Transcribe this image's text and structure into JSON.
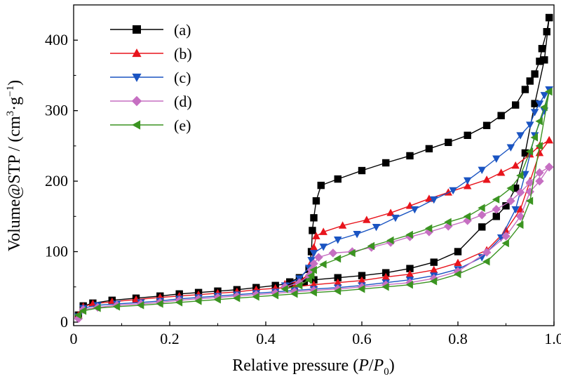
{
  "chart_data": {
    "type": "line",
    "xlabel": {
      "prefix": "Relative pressure (",
      "P": "P",
      "slash": "/",
      "P0": "P",
      "sub0": "0",
      "suffix": ")"
    },
    "ylabel": {
      "main": "Volume@STP / (cm",
      "sup3": "3",
      "mid": "·g",
      "supm1": "−1",
      "end": ")"
    },
    "xlim": [
      0.0,
      1.0
    ],
    "ylim": [
      -5,
      450
    ],
    "xticks": [
      0,
      0.2,
      0.4,
      0.6,
      0.8,
      1.0
    ],
    "xtick_labels": [
      "0",
      "0.2",
      "0.4",
      "0.6",
      "0.8",
      "1.0"
    ],
    "yticks": [
      0,
      100,
      200,
      300,
      400
    ],
    "ytick_labels": [
      "0",
      "100",
      "200",
      "300",
      "400"
    ],
    "grid": false,
    "legend_position": "top-left",
    "series": [
      {
        "name": "(a)",
        "color": "#000000",
        "marker": "square",
        "adsorption": [
          [
            0.01,
            10
          ],
          [
            0.02,
            23
          ],
          [
            0.04,
            27
          ],
          [
            0.08,
            31
          ],
          [
            0.13,
            34
          ],
          [
            0.18,
            37
          ],
          [
            0.22,
            40
          ],
          [
            0.26,
            42
          ],
          [
            0.3,
            44
          ],
          [
            0.34,
            46
          ],
          [
            0.38,
            49
          ],
          [
            0.42,
            52
          ],
          [
            0.45,
            55
          ],
          [
            0.48,
            57
          ],
          [
            0.5,
            60
          ],
          [
            0.55,
            63
          ],
          [
            0.6,
            66
          ],
          [
            0.65,
            70
          ],
          [
            0.7,
            76
          ],
          [
            0.75,
            85
          ],
          [
            0.8,
            100
          ],
          [
            0.85,
            135
          ],
          [
            0.88,
            150
          ],
          [
            0.9,
            165
          ],
          [
            0.92,
            190
          ],
          [
            0.94,
            240
          ],
          [
            0.96,
            310
          ],
          [
            0.98,
            372
          ],
          [
            0.99,
            432
          ]
        ],
        "desorption": [
          [
            0.99,
            432
          ],
          [
            0.985,
            412
          ],
          [
            0.975,
            388
          ],
          [
            0.97,
            370
          ],
          [
            0.96,
            352
          ],
          [
            0.95,
            342
          ],
          [
            0.94,
            330
          ],
          [
            0.92,
            308
          ],
          [
            0.89,
            293
          ],
          [
            0.86,
            279
          ],
          [
            0.82,
            265
          ],
          [
            0.78,
            255
          ],
          [
            0.74,
            246
          ],
          [
            0.7,
            236
          ],
          [
            0.65,
            226
          ],
          [
            0.6,
            215
          ],
          [
            0.55,
            203
          ],
          [
            0.515,
            194
          ],
          [
            0.505,
            172
          ],
          [
            0.5,
            148
          ],
          [
            0.497,
            130
          ],
          [
            0.495,
            100
          ],
          [
            0.49,
            75
          ],
          [
            0.47,
            63
          ],
          [
            0.45,
            57
          ]
        ]
      },
      {
        "name": "(b)",
        "color": "#e8141c",
        "marker": "triangle-up",
        "adsorption": [
          [
            0.01,
            10
          ],
          [
            0.02,
            22
          ],
          [
            0.04,
            26
          ],
          [
            0.08,
            29
          ],
          [
            0.13,
            32
          ],
          [
            0.18,
            35
          ],
          [
            0.22,
            37
          ],
          [
            0.26,
            39
          ],
          [
            0.3,
            41
          ],
          [
            0.34,
            43
          ],
          [
            0.38,
            46
          ],
          [
            0.42,
            48
          ],
          [
            0.46,
            50
          ],
          [
            0.5,
            53
          ],
          [
            0.55,
            56
          ],
          [
            0.6,
            59
          ],
          [
            0.65,
            64
          ],
          [
            0.7,
            68
          ],
          [
            0.75,
            74
          ],
          [
            0.8,
            84
          ],
          [
            0.86,
            102
          ],
          [
            0.9,
            130
          ],
          [
            0.93,
            160
          ],
          [
            0.95,
            200
          ],
          [
            0.97,
            240
          ],
          [
            0.99,
            258
          ]
        ],
        "desorption": [
          [
            0.99,
            258
          ],
          [
            0.97,
            250
          ],
          [
            0.95,
            238
          ],
          [
            0.92,
            222
          ],
          [
            0.89,
            212
          ],
          [
            0.86,
            202
          ],
          [
            0.82,
            193
          ],
          [
            0.78,
            184
          ],
          [
            0.74,
            175
          ],
          [
            0.7,
            165
          ],
          [
            0.66,
            155
          ],
          [
            0.61,
            145
          ],
          [
            0.56,
            137
          ],
          [
            0.52,
            128
          ],
          [
            0.505,
            122
          ],
          [
            0.5,
            106
          ],
          [
            0.495,
            85
          ],
          [
            0.49,
            68
          ],
          [
            0.47,
            58
          ],
          [
            0.44,
            54
          ]
        ]
      },
      {
        "name": "(c)",
        "color": "#1a54c2",
        "marker": "triangle-down",
        "adsorption": [
          [
            0.01,
            8
          ],
          [
            0.02,
            20
          ],
          [
            0.05,
            24
          ],
          [
            0.09,
            26
          ],
          [
            0.14,
            28
          ],
          [
            0.18,
            30
          ],
          [
            0.22,
            33
          ],
          [
            0.26,
            35
          ],
          [
            0.3,
            37
          ],
          [
            0.34,
            39
          ],
          [
            0.38,
            41
          ],
          [
            0.42,
            43
          ],
          [
            0.46,
            45
          ],
          [
            0.5,
            47
          ],
          [
            0.55,
            49
          ],
          [
            0.6,
            52
          ],
          [
            0.65,
            56
          ],
          [
            0.7,
            60
          ],
          [
            0.75,
            66
          ],
          [
            0.8,
            75
          ],
          [
            0.85,
            92
          ],
          [
            0.89,
            120
          ],
          [
            0.92,
            160
          ],
          [
            0.94,
            210
          ],
          [
            0.96,
            265
          ],
          [
            0.98,
            300
          ],
          [
            0.99,
            330
          ]
        ],
        "desorption": [
          [
            0.99,
            330
          ],
          [
            0.98,
            322
          ],
          [
            0.97,
            310
          ],
          [
            0.96,
            298
          ],
          [
            0.95,
            280
          ],
          [
            0.93,
            265
          ],
          [
            0.91,
            248
          ],
          [
            0.88,
            232
          ],
          [
            0.85,
            216
          ],
          [
            0.82,
            201
          ],
          [
            0.79,
            187
          ],
          [
            0.75,
            174
          ],
          [
            0.71,
            160
          ],
          [
            0.67,
            148
          ],
          [
            0.63,
            135
          ],
          [
            0.59,
            125
          ],
          [
            0.55,
            117
          ],
          [
            0.52,
            107
          ],
          [
            0.5,
            98
          ],
          [
            0.495,
            88
          ],
          [
            0.49,
            77
          ],
          [
            0.47,
            62
          ],
          [
            0.44,
            52
          ]
        ]
      },
      {
        "name": "(d)",
        "color": "#c66fc2",
        "marker": "diamond",
        "adsorption": [
          [
            0.01,
            5
          ],
          [
            0.02,
            18
          ],
          [
            0.05,
            21
          ],
          [
            0.09,
            24
          ],
          [
            0.14,
            26
          ],
          [
            0.18,
            28
          ],
          [
            0.22,
            31
          ],
          [
            0.26,
            33
          ],
          [
            0.3,
            35
          ],
          [
            0.34,
            37
          ],
          [
            0.38,
            39
          ],
          [
            0.42,
            41
          ],
          [
            0.46,
            43
          ],
          [
            0.5,
            45
          ],
          [
            0.55,
            47
          ],
          [
            0.6,
            50
          ],
          [
            0.65,
            53
          ],
          [
            0.7,
            56
          ],
          [
            0.75,
            62
          ],
          [
            0.8,
            72
          ],
          [
            0.86,
            99
          ],
          [
            0.9,
            122
          ],
          [
            0.93,
            150
          ],
          [
            0.95,
            185
          ],
          [
            0.97,
            200
          ],
          [
            0.99,
            220
          ]
        ],
        "desorption": [
          [
            0.99,
            220
          ],
          [
            0.97,
            212
          ],
          [
            0.95,
            198
          ],
          [
            0.93,
            184
          ],
          [
            0.91,
            172
          ],
          [
            0.88,
            160
          ],
          [
            0.85,
            152
          ],
          [
            0.82,
            144
          ],
          [
            0.78,
            136
          ],
          [
            0.74,
            128
          ],
          [
            0.7,
            121
          ],
          [
            0.66,
            113
          ],
          [
            0.62,
            106
          ],
          [
            0.58,
            100
          ],
          [
            0.54,
            98
          ],
          [
            0.51,
            92
          ],
          [
            0.5,
            83
          ],
          [
            0.495,
            74
          ],
          [
            0.49,
            66
          ],
          [
            0.47,
            56
          ],
          [
            0.44,
            50
          ]
        ]
      },
      {
        "name": "(e)",
        "color": "#3b9421",
        "marker": "triangle-left",
        "adsorption": [
          [
            0.01,
            10
          ],
          [
            0.02,
            16
          ],
          [
            0.05,
            20
          ],
          [
            0.09,
            22
          ],
          [
            0.14,
            24
          ],
          [
            0.18,
            26
          ],
          [
            0.22,
            28
          ],
          [
            0.26,
            30
          ],
          [
            0.3,
            32
          ],
          [
            0.34,
            34
          ],
          [
            0.38,
            36
          ],
          [
            0.42,
            38
          ],
          [
            0.46,
            40
          ],
          [
            0.5,
            42
          ],
          [
            0.55,
            44
          ],
          [
            0.6,
            47
          ],
          [
            0.65,
            50
          ],
          [
            0.7,
            53
          ],
          [
            0.75,
            58
          ],
          [
            0.8,
            68
          ],
          [
            0.86,
            86
          ],
          [
            0.9,
            112
          ],
          [
            0.93,
            138
          ],
          [
            0.95,
            172
          ],
          [
            0.97,
            250
          ],
          [
            0.99,
            327
          ]
        ],
        "desorption": [
          [
            0.99,
            327
          ],
          [
            0.98,
            305
          ],
          [
            0.97,
            285
          ],
          [
            0.96,
            262
          ],
          [
            0.95,
            242
          ],
          [
            0.93,
            208
          ],
          [
            0.91,
            190
          ],
          [
            0.88,
            174
          ],
          [
            0.85,
            162
          ],
          [
            0.82,
            150
          ],
          [
            0.78,
            142
          ],
          [
            0.74,
            133
          ],
          [
            0.7,
            124
          ],
          [
            0.66,
            116
          ],
          [
            0.62,
            108
          ],
          [
            0.58,
            98
          ],
          [
            0.55,
            90
          ],
          [
            0.52,
            82
          ],
          [
            0.5,
            74
          ],
          [
            0.495,
            66
          ],
          [
            0.49,
            60
          ],
          [
            0.47,
            52
          ],
          [
            0.44,
            47
          ]
        ]
      }
    ]
  }
}
